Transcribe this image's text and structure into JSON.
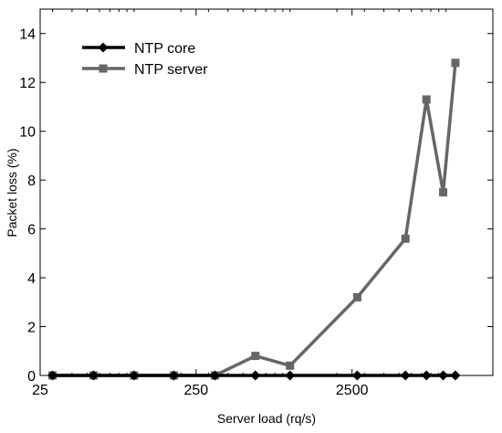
{
  "chart_data": {
    "type": "line",
    "xlabel": "Server load (rq/s)",
    "ylabel": "Packet loss (%)",
    "x_scale": "log",
    "xlim": [
      25,
      20000
    ],
    "ylim": [
      0,
      15
    ],
    "x_ticks": [
      25,
      250,
      2500
    ],
    "y_ticks": [
      0,
      2,
      4,
      6,
      8,
      10,
      12,
      14
    ],
    "grid": false,
    "legend_position": "top-left",
    "series": [
      {
        "name": "NTP core",
        "color": "#000000",
        "marker": "diamond",
        "points": [
          [
            30,
            0
          ],
          [
            55,
            0
          ],
          [
            100,
            0
          ],
          [
            180,
            0
          ],
          [
            330,
            0
          ],
          [
            600,
            0
          ],
          [
            1000,
            0
          ],
          [
            2700,
            0
          ],
          [
            5500,
            0
          ],
          [
            7500,
            0
          ],
          [
            9600,
            0
          ],
          [
            11500,
            0
          ]
        ]
      },
      {
        "name": "NTP server",
        "color": "#666666",
        "marker": "square",
        "points": [
          [
            30,
            0
          ],
          [
            55,
            0
          ],
          [
            100,
            0
          ],
          [
            180,
            0
          ],
          [
            330,
            0
          ],
          [
            600,
            0.8
          ],
          [
            1000,
            0.4
          ],
          [
            2700,
            3.2
          ],
          [
            5500,
            5.6
          ],
          [
            7500,
            11.3
          ],
          [
            9600,
            7.5
          ],
          [
            11500,
            12.8
          ]
        ]
      }
    ]
  }
}
